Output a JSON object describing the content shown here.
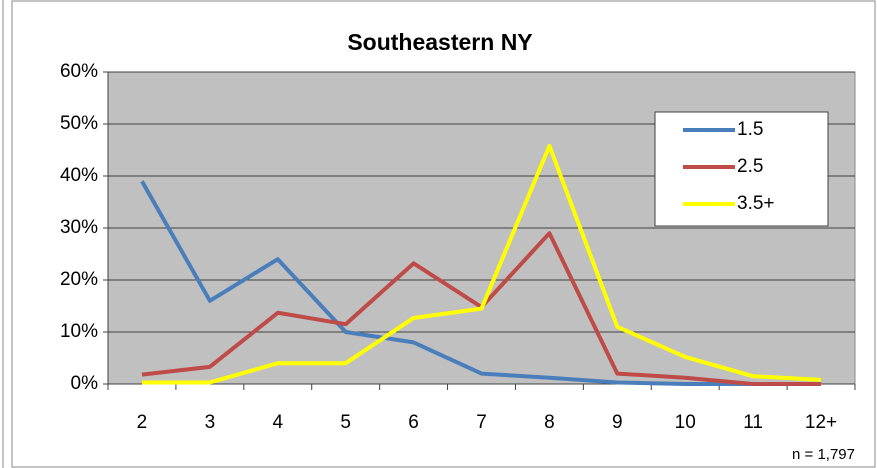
{
  "chart_data": {
    "type": "line",
    "title": "Southeastern NY",
    "categories": [
      "2",
      "3",
      "4",
      "5",
      "6",
      "7",
      "8",
      "9",
      "10",
      "11",
      "12+"
    ],
    "series": [
      {
        "name": "1.5",
        "color": "#4a7ebb",
        "values": [
          39,
          16,
          24,
          10,
          8,
          2,
          1.2,
          0.3,
          0,
          0,
          0
        ]
      },
      {
        "name": "2.5",
        "color": "#be4b48",
        "values": [
          1.8,
          3.3,
          13.7,
          11.5,
          23.2,
          14.8,
          29,
          2,
          1.2,
          0,
          0
        ]
      },
      {
        "name": "3.5+",
        "color": "#ffff00",
        "values": [
          0.3,
          0.3,
          4,
          4,
          12.7,
          14.5,
          45.8,
          11,
          5.2,
          1.5,
          0.8
        ]
      }
    ],
    "ylim": [
      0,
      60
    ],
    "yticks": [
      {
        "value": 0,
        "label": "0%"
      },
      {
        "value": 10,
        "label": "10%"
      },
      {
        "value": 20,
        "label": "20%"
      },
      {
        "value": 30,
        "label": "30%"
      },
      {
        "value": 40,
        "label": "40%"
      },
      {
        "value": 50,
        "label": "50%"
      },
      {
        "value": 60,
        "label": "60%"
      }
    ],
    "grid": true,
    "legend": "upper right",
    "annotation": "n = 1,797"
  }
}
